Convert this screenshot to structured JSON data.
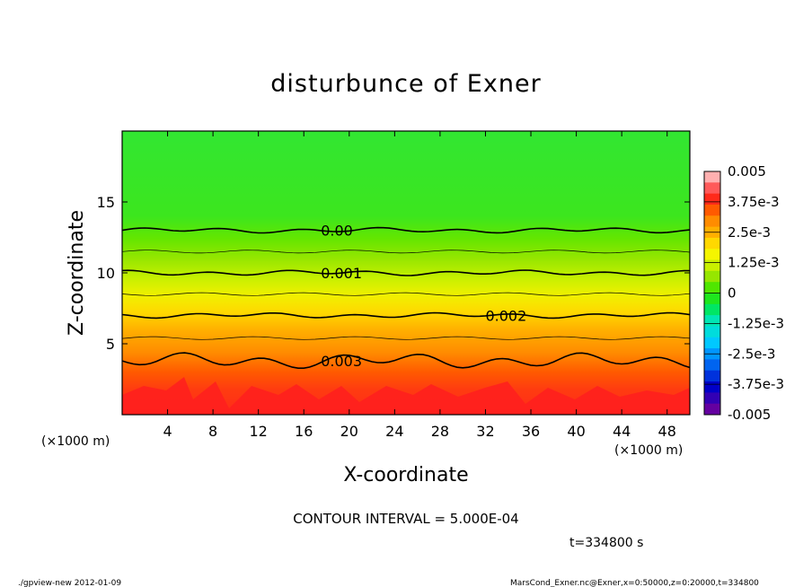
{
  "chart_data": {
    "type": "contour",
    "title": "disturbunce of Exner",
    "xlabel": "X-coordinate",
    "ylabel": "Z-coordinate",
    "x_unit": "(×1000 m)",
    "y_unit": "(×1000 m)",
    "xlim": [
      0,
      50
    ],
    "ylim": [
      0,
      20
    ],
    "x_ticks": [
      4,
      8,
      12,
      16,
      20,
      24,
      28,
      32,
      36,
      40,
      44,
      48
    ],
    "y_ticks": [
      5,
      10,
      15
    ],
    "contour_interval_text": "CONTOUR INTERVAL = 5.000E-04",
    "time_text": "t=334800 s",
    "contour_levels": [
      {
        "label": "0.00",
        "z": 13.0,
        "x_label": 17.5
      },
      {
        "label": "0.001",
        "z": 10.0,
        "x_label": 17.5
      },
      {
        "label": "0.002",
        "z": 7.0,
        "x_label": 32.0
      },
      {
        "label": "0.003",
        "z": 3.8,
        "x_label": 17.5
      }
    ],
    "colorbar": {
      "labels": [
        "0.005",
        "3.75e-3",
        "2.5e-3",
        "1.25e-3",
        "0",
        "-1.25e-3",
        "-2.5e-3",
        "-3.75e-3",
        "-0.005"
      ],
      "colors": [
        "#ffb0b0",
        "#ff5a5a",
        "#ff2a1a",
        "#ff5a00",
        "#ff8c00",
        "#ffb000",
        "#ffd800",
        "#f5f500",
        "#c8f000",
        "#96e600",
        "#50e600",
        "#1ee61e",
        "#00e664",
        "#00e6b4",
        "#00dcdc",
        "#00c8ff",
        "#0096ff",
        "#0064f0",
        "#0032dc",
        "#0000c8",
        "#3200b4",
        "#6400a0"
      ]
    }
  },
  "footer": {
    "left": "./gpview-new   2012-01-09",
    "right": "MarsCond_Exner.nc@Exner,x=0:50000,z=0:20000,t=334800"
  }
}
